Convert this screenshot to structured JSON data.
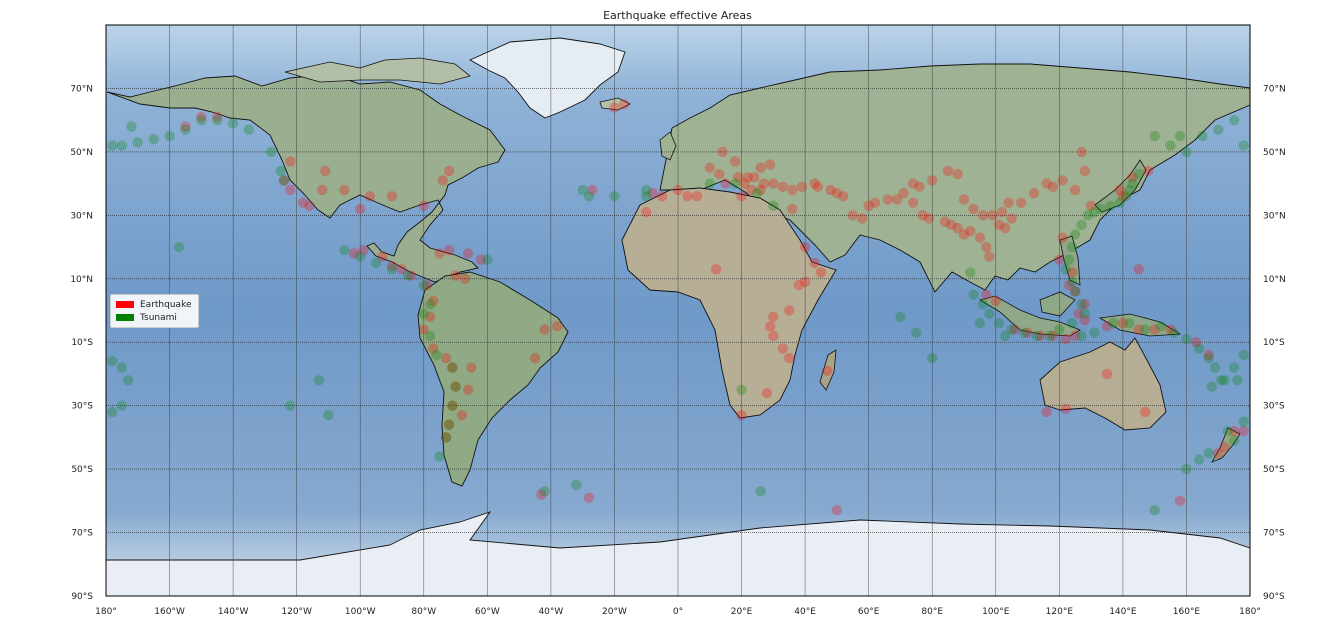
{
  "title": "Earthquake effective Areas",
  "legend": [
    {
      "label": "Earthquake",
      "color": "#ff0000"
    },
    {
      "label": "Tsunami",
      "color": "#008000"
    }
  ],
  "chart_data": {
    "type": "scatter",
    "title": "Earthquake effective Areas",
    "projection": "equirectangular",
    "xlim": [
      -180,
      180
    ],
    "ylim": [
      -90,
      90
    ],
    "grid": true,
    "legend_position": "center-left",
    "lon_ticks": [
      "180°",
      "160°W",
      "140°W",
      "120°W",
      "100°W",
      "80°W",
      "60°W",
      "40°W",
      "20°W",
      "0°",
      "20°E",
      "40°E",
      "60°E",
      "80°E",
      "100°E",
      "120°E",
      "140°E",
      "160°E",
      "180°"
    ],
    "lat_ticks": [
      "90°S",
      "70°S",
      "50°S",
      "30°S",
      "10°S",
      "10°N",
      "30°N",
      "50°N",
      "70°N"
    ],
    "series": [
      {
        "name": "Earthquake",
        "color": "#ff0000",
        "points": [
          [
            -150,
            61
          ],
          [
            -145,
            61
          ],
          [
            -155,
            58
          ],
          [
            -122,
            47
          ],
          [
            -124,
            41
          ],
          [
            -122,
            38
          ],
          [
            -118,
            34
          ],
          [
            -116,
            33
          ],
          [
            -112,
            38
          ],
          [
            -111,
            44
          ],
          [
            -105,
            38
          ],
          [
            -97,
            36
          ],
          [
            -90,
            36
          ],
          [
            -80,
            33
          ],
          [
            -74,
            41
          ],
          [
            -72,
            44
          ],
          [
            -100,
            32
          ],
          [
            -93,
            17
          ],
          [
            -99,
            19
          ],
          [
            -102,
            18
          ],
          [
            -90,
            14
          ],
          [
            -87,
            13
          ],
          [
            -84,
            11
          ],
          [
            -79,
            8
          ],
          [
            -77,
            3
          ],
          [
            -78,
            -2
          ],
          [
            -80,
            -6
          ],
          [
            -77,
            -12
          ],
          [
            -73,
            -15
          ],
          [
            -71,
            -18
          ],
          [
            -70,
            -24
          ],
          [
            -71,
            -30
          ],
          [
            -72,
            -36
          ],
          [
            -73,
            -40
          ],
          [
            -68,
            -33
          ],
          [
            -66,
            -25
          ],
          [
            -65,
            -18
          ],
          [
            -75,
            18
          ],
          [
            -72,
            19
          ],
          [
            -66,
            18
          ],
          [
            -62,
            16
          ],
          [
            -70,
            11
          ],
          [
            -67,
            10
          ],
          [
            -42,
            -6
          ],
          [
            -38,
            -5
          ],
          [
            -45,
            -15
          ],
          [
            -17,
            65
          ],
          [
            -20,
            64
          ],
          [
            -27,
            38
          ],
          [
            -8,
            37
          ],
          [
            -5,
            36
          ],
          [
            0,
            38
          ],
          [
            3,
            36
          ],
          [
            6,
            36
          ],
          [
            10,
            45
          ],
          [
            13,
            43
          ],
          [
            15,
            40
          ],
          [
            21,
            40
          ],
          [
            23,
            38
          ],
          [
            26,
            38
          ],
          [
            27,
            40
          ],
          [
            30,
            40
          ],
          [
            33,
            39
          ],
          [
            36,
            38
          ],
          [
            39,
            39
          ],
          [
            43,
            40
          ],
          [
            44,
            39
          ],
          [
            48,
            38
          ],
          [
            50,
            37
          ],
          [
            52,
            36
          ],
          [
            55,
            30
          ],
          [
            58,
            29
          ],
          [
            60,
            33
          ],
          [
            62,
            34
          ],
          [
            66,
            35
          ],
          [
            69,
            35
          ],
          [
            71,
            37
          ],
          [
            74,
            40
          ],
          [
            76,
            39
          ],
          [
            80,
            41
          ],
          [
            85,
            44
          ],
          [
            88,
            43
          ],
          [
            90,
            35
          ],
          [
            93,
            32
          ],
          [
            96,
            30
          ],
          [
            99,
            30
          ],
          [
            101,
            27
          ],
          [
            103,
            26
          ],
          [
            105,
            29
          ],
          [
            102,
            31
          ],
          [
            104,
            34
          ],
          [
            108,
            34
          ],
          [
            112,
            37
          ],
          [
            116,
            40
          ],
          [
            118,
            39
          ],
          [
            121,
            41
          ],
          [
            125,
            38
          ],
          [
            130,
            33
          ],
          [
            128,
            44
          ],
          [
            127,
            50
          ],
          [
            74,
            34
          ],
          [
            77,
            30
          ],
          [
            79,
            29
          ],
          [
            84,
            28
          ],
          [
            86,
            27
          ],
          [
            88,
            26
          ],
          [
            92,
            25
          ],
          [
            95,
            23
          ],
          [
            97,
            20
          ],
          [
            98,
            17
          ],
          [
            90,
            24
          ],
          [
            22,
            42
          ],
          [
            24,
            42
          ],
          [
            19,
            42
          ],
          [
            14,
            50
          ],
          [
            18,
            47
          ],
          [
            26,
            45
          ],
          [
            29,
            46
          ],
          [
            20,
            36
          ],
          [
            36,
            32
          ],
          [
            40,
            20
          ],
          [
            43,
            15
          ],
          [
            45,
            12
          ],
          [
            40,
            9
          ],
          [
            38,
            8
          ],
          [
            35,
            0
          ],
          [
            30,
            -2
          ],
          [
            29,
            -5
          ],
          [
            30,
            -8
          ],
          [
            33,
            -12
          ],
          [
            35,
            -15
          ],
          [
            28,
            -26
          ],
          [
            20,
            -33
          ],
          [
            47,
            -19
          ],
          [
            12,
            13
          ],
          [
            -10,
            31
          ],
          [
            100,
            3
          ],
          [
            97,
            5
          ],
          [
            106,
            -6
          ],
          [
            110,
            -7
          ],
          [
            114,
            -8
          ],
          [
            118,
            -8
          ],
          [
            122,
            -9
          ],
          [
            125,
            -8
          ],
          [
            128,
            -3
          ],
          [
            135,
            -5
          ],
          [
            140,
            -4
          ],
          [
            145,
            -6
          ],
          [
            150,
            -6
          ],
          [
            155,
            -6
          ],
          [
            163,
            -10
          ],
          [
            167,
            -14
          ],
          [
            124,
            12
          ],
          [
            123,
            8
          ],
          [
            125,
            6
          ],
          [
            120,
            16
          ],
          [
            121,
            23
          ],
          [
            135,
            -20
          ],
          [
            147,
            -32
          ],
          [
            116,
            -32
          ],
          [
            122,
            -31
          ],
          [
            175,
            -38
          ],
          [
            178,
            -38
          ],
          [
            172,
            -43
          ],
          [
            170,
            -45
          ],
          [
            158,
            -60
          ],
          [
            -28,
            -59
          ],
          [
            -43,
            -58
          ],
          [
            50,
            -63
          ],
          [
            145,
            13
          ],
          [
            128,
            2
          ],
          [
            126,
            -1
          ],
          [
            148,
            44
          ],
          [
            143,
            42
          ],
          [
            140,
            36
          ],
          [
            139,
            38
          ]
        ]
      },
      {
        "name": "Tsunami",
        "color": "#008000",
        "points": [
          [
            -178,
            52
          ],
          [
            -175,
            52
          ],
          [
            -170,
            53
          ],
          [
            -165,
            54
          ],
          [
            -160,
            55
          ],
          [
            -155,
            57
          ],
          [
            -150,
            60
          ],
          [
            -145,
            60
          ],
          [
            -140,
            59
          ],
          [
            -135,
            57
          ],
          [
            -128,
            50
          ],
          [
            -125,
            44
          ],
          [
            -124,
            41
          ],
          [
            -172,
            58
          ],
          [
            -157,
            20
          ],
          [
            -105,
            19
          ],
          [
            -100,
            17
          ],
          [
            -95,
            15
          ],
          [
            -90,
            13
          ],
          [
            -85,
            11
          ],
          [
            -80,
            8
          ],
          [
            -78,
            2
          ],
          [
            -80,
            -1
          ],
          [
            -78,
            -8
          ],
          [
            -76,
            -14
          ],
          [
            -71,
            -18
          ],
          [
            -70,
            -24
          ],
          [
            -71,
            -30
          ],
          [
            -72,
            -36
          ],
          [
            -73,
            -40
          ],
          [
            -75,
            -46
          ],
          [
            -178,
            -16
          ],
          [
            -175,
            -18
          ],
          [
            -173,
            -22
          ],
          [
            -175,
            -30
          ],
          [
            -178,
            -32
          ],
          [
            -122,
            -30
          ],
          [
            -113,
            -22
          ],
          [
            -110,
            -33
          ],
          [
            -60,
            16
          ],
          [
            -20,
            36
          ],
          [
            -30,
            38
          ],
          [
            -10,
            36
          ],
          [
            20,
            -25
          ],
          [
            26,
            -57
          ],
          [
            -42,
            -57
          ],
          [
            -32,
            -55
          ],
          [
            -28,
            36
          ],
          [
            -10,
            38
          ],
          [
            10,
            40
          ],
          [
            18,
            40
          ],
          [
            25,
            37
          ],
          [
            30,
            33
          ],
          [
            145,
            43
          ],
          [
            143,
            40
          ],
          [
            142,
            38
          ],
          [
            141,
            36
          ],
          [
            139,
            34
          ],
          [
            136,
            33
          ],
          [
            133,
            32
          ],
          [
            131,
            31
          ],
          [
            129,
            30
          ],
          [
            127,
            27
          ],
          [
            125,
            24
          ],
          [
            124,
            20
          ],
          [
            123,
            16
          ],
          [
            122,
            13
          ],
          [
            124,
            9
          ],
          [
            125,
            6
          ],
          [
            127,
            2
          ],
          [
            128,
            -1
          ],
          [
            124,
            -4
          ],
          [
            120,
            -6
          ],
          [
            117,
            -8
          ],
          [
            113,
            -8
          ],
          [
            109,
            -7
          ],
          [
            105,
            -6
          ],
          [
            101,
            -4
          ],
          [
            98,
            -1
          ],
          [
            96,
            2
          ],
          [
            93,
            5
          ],
          [
            92,
            12
          ],
          [
            95,
            -4
          ],
          [
            103,
            -8
          ],
          [
            127,
            -8
          ],
          [
            131,
            -7
          ],
          [
            137,
            -4
          ],
          [
            142,
            -4
          ],
          [
            147,
            -6
          ],
          [
            152,
            -5
          ],
          [
            156,
            -7
          ],
          [
            160,
            -9
          ],
          [
            164,
            -12
          ],
          [
            167,
            -15
          ],
          [
            169,
            -18
          ],
          [
            171,
            -22
          ],
          [
            176,
            -22
          ],
          [
            160,
            -50
          ],
          [
            164,
            -47
          ],
          [
            167,
            -45
          ],
          [
            150,
            -63
          ],
          [
            178,
            -35
          ],
          [
            172,
            -22
          ],
          [
            175,
            -18
          ],
          [
            178,
            -14
          ],
          [
            150,
            55
          ],
          [
            155,
            52
          ],
          [
            158,
            55
          ],
          [
            160,
            50
          ],
          [
            165,
            55
          ],
          [
            170,
            57
          ],
          [
            178,
            52
          ],
          [
            168,
            -24
          ],
          [
            173,
            -38
          ],
          [
            175,
            -41
          ],
          [
            175,
            60
          ],
          [
            75,
            -7
          ],
          [
            70,
            -2
          ],
          [
            80,
            -15
          ]
        ]
      }
    ]
  }
}
